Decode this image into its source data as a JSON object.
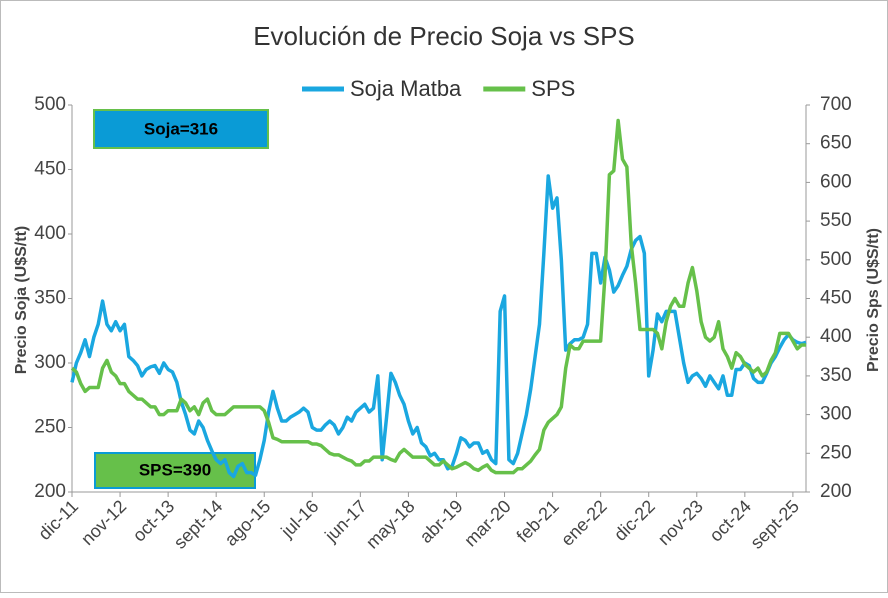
{
  "chart_data": {
    "type": "line",
    "title": "Evolución de Precio Soja vs SPS",
    "y_label": "Precio Soja (U$S/tt)",
    "y2_label": "Precio Sps (U$S/tt)",
    "annotations": [
      {
        "text": "Soja=316"
      },
      {
        "text": "SPS=390"
      }
    ],
    "categories": [
      "dic-11",
      null,
      null,
      null,
      null,
      null,
      null,
      null,
      null,
      null,
      null,
      "nov-12",
      null,
      null,
      null,
      null,
      null,
      null,
      null,
      null,
      null,
      null,
      "oct-13",
      null,
      null,
      null,
      null,
      null,
      null,
      null,
      null,
      null,
      null,
      "sept-14",
      null,
      null,
      null,
      null,
      null,
      null,
      null,
      null,
      null,
      null,
      "ago-15",
      null,
      null,
      null,
      null,
      null,
      null,
      null,
      null,
      null,
      null,
      "jul-16",
      null,
      null,
      null,
      null,
      null,
      null,
      null,
      null,
      null,
      null,
      "jun-17",
      null,
      null,
      null,
      null,
      null,
      null,
      null,
      null,
      null,
      null,
      "may-18",
      null,
      null,
      null,
      null,
      null,
      null,
      null,
      null,
      null,
      null,
      "abr-19",
      null,
      null,
      null,
      null,
      null,
      null,
      null,
      null,
      null,
      null,
      "mar-20",
      null,
      null,
      null,
      null,
      null,
      null,
      null,
      null,
      null,
      null,
      "feb-21",
      null,
      null,
      null,
      null,
      null,
      null,
      null,
      null,
      null,
      null,
      "ene-22",
      null,
      null,
      null,
      null,
      null,
      null,
      null,
      null,
      null,
      null,
      "dic-22",
      null,
      null,
      null,
      null,
      null,
      null,
      null,
      null,
      null,
      null,
      "nov-23",
      null,
      null,
      null,
      null,
      null,
      null,
      null,
      null,
      null,
      null,
      "oct-24",
      null,
      null,
      null,
      null,
      null,
      null,
      null,
      null,
      null,
      null,
      "sept-25",
      null,
      null,
      null
    ],
    "series": [
      {
        "name": "Soja Matba",
        "color": "#1aa7e0",
        "axis": "y",
        "values": [
          285,
          300,
          308,
          318,
          305,
          320,
          330,
          348,
          330,
          325,
          332,
          325,
          330,
          305,
          302,
          298,
          290,
          295,
          297,
          298,
          292,
          300,
          295,
          293,
          285,
          270,
          260,
          248,
          245,
          255,
          250,
          240,
          232,
          225,
          222,
          225,
          215,
          212,
          220,
          222,
          215,
          215,
          213,
          225,
          240,
          262,
          278,
          265,
          255,
          255,
          258,
          260,
          262,
          265,
          262,
          250,
          248,
          248,
          252,
          255,
          252,
          245,
          250,
          258,
          255,
          262,
          265,
          268,
          262,
          265,
          290,
          225,
          258,
          292,
          285,
          275,
          268,
          255,
          245,
          250,
          238,
          235,
          228,
          230,
          225,
          225,
          218,
          220,
          230,
          242,
          240,
          235,
          238,
          238,
          230,
          232,
          225,
          222,
          340,
          352,
          225,
          222,
          230,
          245,
          260,
          280,
          305,
          330,
          385,
          445,
          420,
          428,
          380,
          310,
          315,
          318,
          318,
          320,
          330,
          385,
          385,
          362,
          382,
          372,
          355,
          360,
          368,
          375,
          388,
          395,
          398,
          385,
          290,
          310,
          338,
          332,
          340,
          340,
          340,
          320,
          300,
          285,
          290,
          292,
          288,
          282,
          290,
          285,
          280,
          290,
          275,
          275,
          295,
          295,
          300,
          298,
          288,
          285,
          285,
          292,
          300,
          305,
          312,
          318,
          322,
          318,
          316,
          315,
          316
        ]
      },
      {
        "name": "SPS",
        "color": "#66c04a",
        "axis": "y2",
        "values": [
          360,
          355,
          340,
          330,
          335,
          335,
          335,
          360,
          370,
          355,
          350,
          340,
          340,
          330,
          325,
          320,
          320,
          315,
          310,
          310,
          300,
          300,
          305,
          305,
          305,
          320,
          315,
          305,
          310,
          300,
          315,
          320,
          305,
          300,
          300,
          300,
          305,
          310,
          310,
          310,
          310,
          310,
          310,
          310,
          305,
          290,
          270,
          268,
          265,
          265,
          265,
          265,
          265,
          265,
          265,
          262,
          262,
          260,
          255,
          250,
          248,
          248,
          245,
          242,
          240,
          235,
          235,
          240,
          240,
          245,
          245,
          245,
          245,
          242,
          240,
          250,
          255,
          250,
          245,
          245,
          245,
          245,
          240,
          235,
          235,
          240,
          235,
          230,
          232,
          235,
          238,
          235,
          230,
          228,
          232,
          235,
          228,
          225,
          225,
          225,
          225,
          225,
          230,
          230,
          235,
          240,
          248,
          255,
          280,
          290,
          295,
          300,
          310,
          360,
          390,
          385,
          385,
          395,
          395,
          395,
          395,
          395,
          480,
          610,
          615,
          680,
          630,
          620,
          520,
          470,
          410,
          410,
          410,
          410,
          405,
          385,
          420,
          440,
          450,
          440,
          440,
          470,
          490,
          460,
          420,
          400,
          395,
          400,
          420,
          385,
          375,
          360,
          380,
          375,
          365,
          360,
          355,
          360,
          350,
          355,
          370,
          380,
          405,
          405,
          405,
          395,
          385,
          390,
          390
        ]
      }
    ],
    "ylim": [
      200,
      500
    ],
    "yticks": [
      200,
      250,
      300,
      350,
      400,
      450,
      500
    ],
    "y2lim": [
      200,
      700
    ],
    "y2ticks": [
      200,
      250,
      300,
      350,
      400,
      450,
      500,
      550,
      600,
      650,
      700
    ],
    "grid": false
  }
}
